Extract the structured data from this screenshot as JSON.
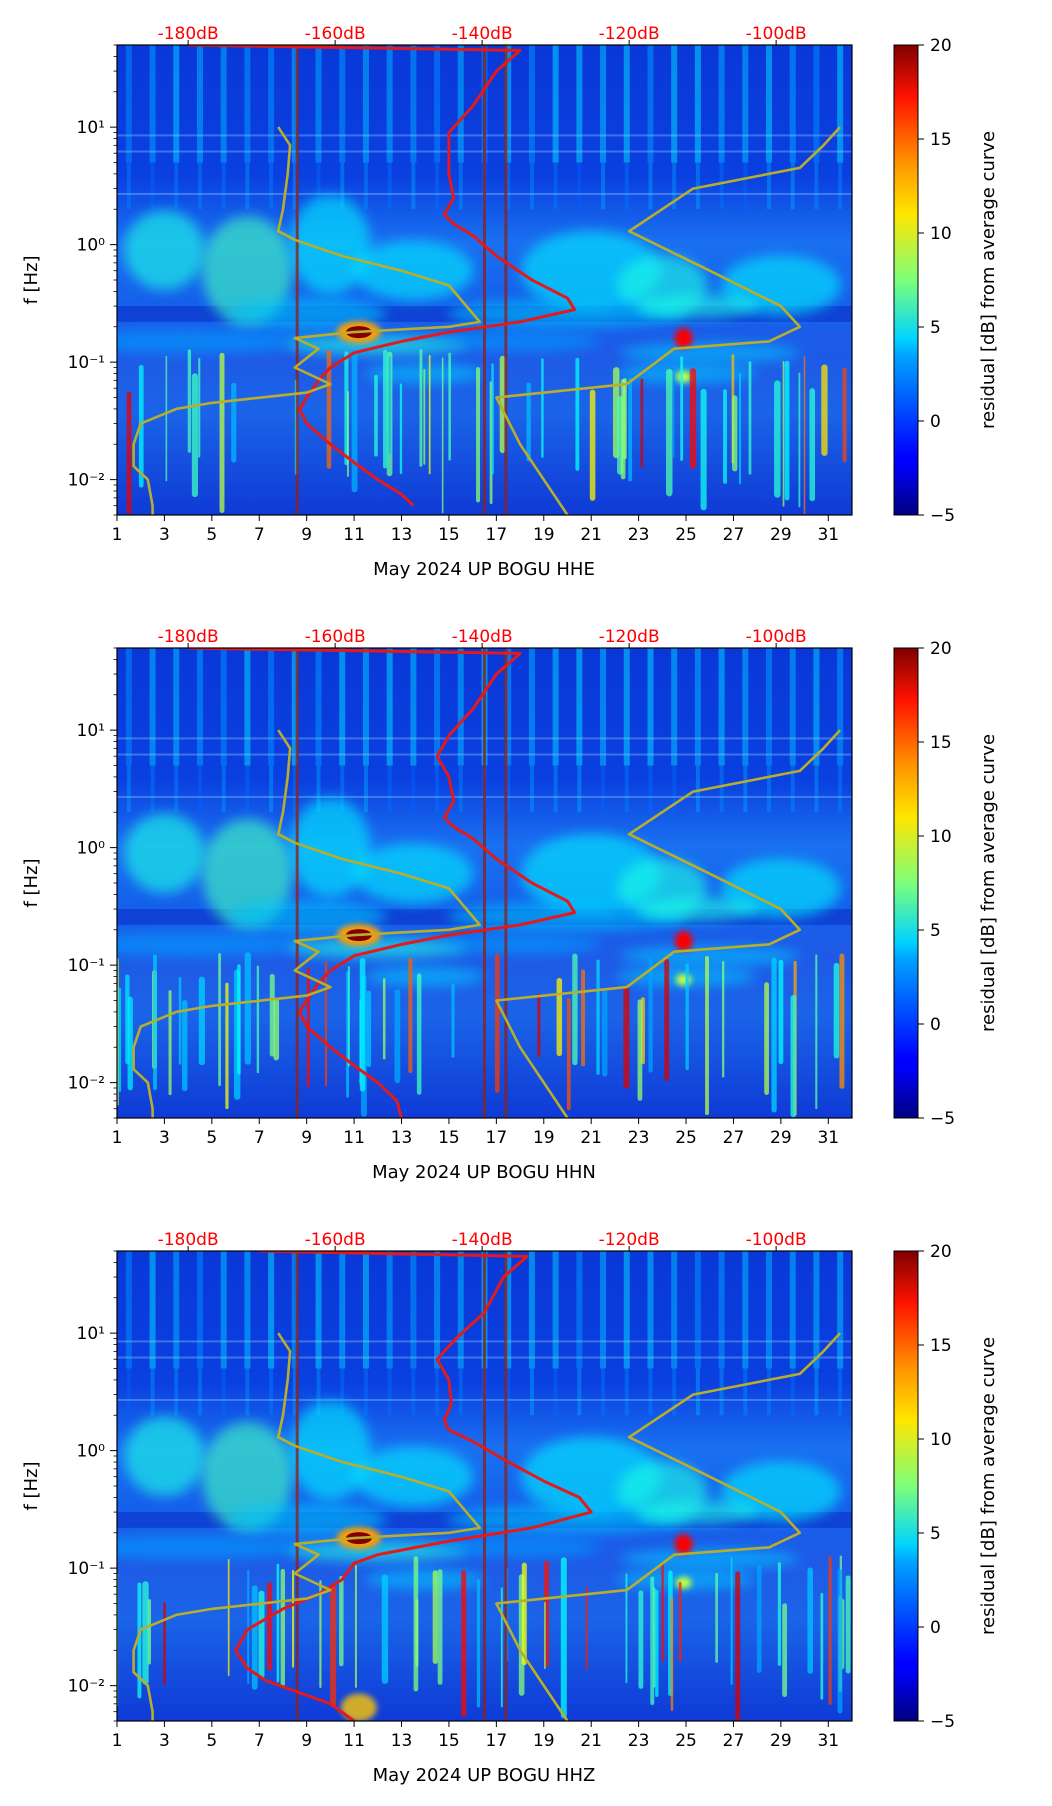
{
  "figure": {
    "panels": [
      {
        "xlabel": "May 2024 UP BOGU  HHE"
      },
      {
        "xlabel": "May 2024 UP BOGU  HHN"
      },
      {
        "xlabel": "May 2024 UP BOGU  HHZ"
      }
    ]
  },
  "chart_data": [
    {
      "type": "heatmap",
      "title": "",
      "xlabel": "May 2024 UP BOGU  HHE",
      "ylabel": "f [Hz]",
      "y_scale": "log",
      "xlim": [
        1,
        32
      ],
      "ylim": [
        0.005,
        50
      ],
      "x_ticks": [
        "1",
        "3",
        "5",
        "7",
        "9",
        "11",
        "13",
        "15",
        "17",
        "19",
        "21",
        "23",
        "25",
        "27",
        "29",
        "31"
      ],
      "y_ticks": [
        {
          "value": 0.01,
          "label": "10⁻²"
        },
        {
          "value": 0.1,
          "label": "10⁻¹"
        },
        {
          "value": 1,
          "label": "10⁰"
        },
        {
          "value": 10,
          "label": "10¹"
        }
      ],
      "top_ticks": [
        {
          "x": 4.0,
          "label": "-180dB"
        },
        {
          "x": 10.2,
          "label": "-160dB"
        },
        {
          "x": 16.4,
          "label": "-140dB"
        },
        {
          "x": 22.6,
          "label": "-120dB"
        },
        {
          "x": 28.8,
          "label": "-100dB"
        }
      ],
      "top_tick_color": "#ff0000",
      "colorbar": {
        "label": "residual [dB] from average curve",
        "range": [
          -5,
          20
        ],
        "ticks": [
          "20",
          "15",
          "10",
          "5",
          "0",
          "−5"
        ],
        "colormap": "jet"
      },
      "series": [
        {
          "color": "#e31a1c",
          "points": [
            [
              4.0,
              50
            ],
            [
              18,
              45
            ],
            [
              17,
              30
            ],
            [
              16,
              15
            ],
            [
              15,
              9
            ],
            [
              15,
              6
            ],
            [
              15,
              4
            ],
            [
              15.2,
              2.5
            ],
            [
              14.8,
              1.8
            ],
            [
              15.2,
              1.5
            ],
            [
              16,
              1.2
            ],
            [
              17,
              0.8
            ],
            [
              18.5,
              0.5
            ],
            [
              20,
              0.35
            ],
            [
              20.3,
              0.28
            ],
            [
              18,
              0.22
            ],
            [
              15,
              0.18
            ],
            [
              13,
              0.15
            ],
            [
              11,
              0.12
            ],
            [
              10,
              0.09
            ],
            [
              9.5,
              0.07
            ],
            [
              9,
              0.05
            ],
            [
              8.7,
              0.04
            ],
            [
              9,
              0.03
            ],
            [
              10,
              0.02
            ],
            [
              11,
              0.014
            ],
            [
              12,
              0.01
            ],
            [
              13,
              0.0075
            ],
            [
              13.5,
              0.006
            ]
          ]
        },
        {
          "color": "#b8ad2c",
          "points": [
            [
              7.8,
              10
            ],
            [
              8.3,
              7
            ],
            [
              8.2,
              4
            ],
            [
              8.0,
              2
            ],
            [
              7.8,
              1.3
            ],
            [
              8.5,
              1.1
            ],
            [
              10.5,
              0.8
            ],
            [
              13,
              0.6
            ],
            [
              15,
              0.45
            ],
            [
              16.3,
              0.22
            ],
            [
              15,
              0.2
            ],
            [
              11,
              0.18
            ],
            [
              8.5,
              0.16
            ],
            [
              9.5,
              0.13
            ],
            [
              8.5,
              0.09
            ],
            [
              10,
              0.065
            ],
            [
              9,
              0.055
            ],
            [
              5,
              0.045
            ],
            [
              3.5,
              0.04
            ],
            [
              2,
              0.03
            ],
            [
              1.7,
              0.02
            ],
            [
              1.7,
              0.013
            ],
            [
              2.3,
              0.01
            ],
            [
              2.5,
              0.006
            ],
            [
              2.5,
              0.005
            ]
          ]
        },
        {
          "color": "#b8ad2c",
          "points": [
            [
              20,
              0.005
            ],
            [
              18,
              0.02
            ],
            [
              17,
              0.05
            ],
            [
              22.5,
              0.065
            ],
            [
              24.5,
              0.13
            ],
            [
              28.5,
              0.15
            ],
            [
              29.8,
              0.2
            ],
            [
              29,
              0.3
            ],
            [
              26,
              0.6
            ],
            [
              22.6,
              1.3
            ],
            [
              25.3,
              3
            ],
            [
              29.8,
              4.5
            ],
            [
              30.8,
              7
            ],
            [
              31.5,
              10
            ]
          ]
        }
      ]
    },
    {
      "type": "heatmap",
      "title": "",
      "xlabel": "May 2024 UP BOGU  HHN",
      "ylabel": "f [Hz]",
      "y_scale": "log",
      "xlim": [
        1,
        32
      ],
      "ylim": [
        0.005,
        50
      ],
      "x_ticks": [
        "1",
        "3",
        "5",
        "7",
        "9",
        "11",
        "13",
        "15",
        "17",
        "19",
        "21",
        "23",
        "25",
        "27",
        "29",
        "31"
      ],
      "y_ticks": [
        {
          "value": 0.01,
          "label": "10⁻²"
        },
        {
          "value": 0.1,
          "label": "10⁻¹"
        },
        {
          "value": 1,
          "label": "10⁰"
        },
        {
          "value": 10,
          "label": "10¹"
        }
      ],
      "top_ticks": [
        {
          "x": 4.0,
          "label": "-180dB"
        },
        {
          "x": 10.2,
          "label": "-160dB"
        },
        {
          "x": 16.4,
          "label": "-140dB"
        },
        {
          "x": 22.6,
          "label": "-120dB"
        },
        {
          "x": 28.8,
          "label": "-100dB"
        }
      ],
      "top_tick_color": "#ff0000",
      "colorbar": {
        "label": "residual [dB] from average curve",
        "range": [
          -5,
          20
        ],
        "ticks": [
          "20",
          "15",
          "10",
          "5",
          "0",
          "−5"
        ],
        "colormap": "jet"
      },
      "series": [
        {
          "color": "#e31a1c",
          "points": [
            [
              4.0,
              50
            ],
            [
              18,
              45
            ],
            [
              17,
              30
            ],
            [
              16,
              15
            ],
            [
              15,
              9
            ],
            [
              14.5,
              6
            ],
            [
              15,
              4
            ],
            [
              15.2,
              2.5
            ],
            [
              14.8,
              1.8
            ],
            [
              15.2,
              1.5
            ],
            [
              16,
              1.2
            ],
            [
              17,
              0.8
            ],
            [
              18.5,
              0.5
            ],
            [
              20,
              0.35
            ],
            [
              20.3,
              0.28
            ],
            [
              18,
              0.22
            ],
            [
              15,
              0.18
            ],
            [
              13,
              0.15
            ],
            [
              11,
              0.12
            ],
            [
              10,
              0.09
            ],
            [
              9.5,
              0.07
            ],
            [
              9,
              0.05
            ],
            [
              8.7,
              0.04
            ],
            [
              9,
              0.03
            ],
            [
              10,
              0.02
            ],
            [
              11,
              0.014
            ],
            [
              12,
              0.01
            ],
            [
              12.8,
              0.007
            ],
            [
              13,
              0.005
            ]
          ]
        },
        {
          "color": "#b8ad2c",
          "points": [
            [
              7.8,
              10
            ],
            [
              8.3,
              7
            ],
            [
              8.2,
              4
            ],
            [
              8.0,
              2
            ],
            [
              7.8,
              1.3
            ],
            [
              8.5,
              1.1
            ],
            [
              10.5,
              0.8
            ],
            [
              13,
              0.6
            ],
            [
              15,
              0.45
            ],
            [
              16.3,
              0.22
            ],
            [
              15,
              0.2
            ],
            [
              11,
              0.18
            ],
            [
              8.5,
              0.16
            ],
            [
              9.5,
              0.13
            ],
            [
              8.5,
              0.09
            ],
            [
              10,
              0.065
            ],
            [
              9,
              0.055
            ],
            [
              5,
              0.045
            ],
            [
              3.5,
              0.04
            ],
            [
              2,
              0.03
            ],
            [
              1.7,
              0.02
            ],
            [
              1.7,
              0.013
            ],
            [
              2.3,
              0.01
            ],
            [
              2.5,
              0.006
            ],
            [
              2.5,
              0.005
            ]
          ]
        },
        {
          "color": "#b8ad2c",
          "points": [
            [
              20,
              0.005
            ],
            [
              18,
              0.02
            ],
            [
              17,
              0.05
            ],
            [
              22.5,
              0.065
            ],
            [
              24.5,
              0.13
            ],
            [
              28.5,
              0.15
            ],
            [
              29.8,
              0.2
            ],
            [
              29,
              0.3
            ],
            [
              26,
              0.6
            ],
            [
              22.6,
              1.3
            ],
            [
              25.3,
              3
            ],
            [
              29.8,
              4.5
            ],
            [
              30.8,
              7
            ],
            [
              31.5,
              10
            ]
          ]
        }
      ]
    },
    {
      "type": "heatmap",
      "title": "",
      "xlabel": "May 2024 UP BOGU  HHZ",
      "ylabel": "f [Hz]",
      "y_scale": "log",
      "xlim": [
        1,
        32
      ],
      "ylim": [
        0.005,
        50
      ],
      "x_ticks": [
        "1",
        "3",
        "5",
        "7",
        "9",
        "11",
        "13",
        "15",
        "17",
        "19",
        "21",
        "23",
        "25",
        "27",
        "29",
        "31"
      ],
      "y_ticks": [
        {
          "value": 0.01,
          "label": "10⁻²"
        },
        {
          "value": 0.1,
          "label": "10⁻¹"
        },
        {
          "value": 1,
          "label": "10⁰"
        },
        {
          "value": 10,
          "label": "10¹"
        }
      ],
      "top_ticks": [
        {
          "x": 4.0,
          "label": "-180dB"
        },
        {
          "x": 10.2,
          "label": "-160dB"
        },
        {
          "x": 16.4,
          "label": "-140dB"
        },
        {
          "x": 22.6,
          "label": "-120dB"
        },
        {
          "x": 28.8,
          "label": "-100dB"
        }
      ],
      "top_tick_color": "#ff0000",
      "colorbar": {
        "label": "residual [dB] from average curve",
        "range": [
          -5,
          20
        ],
        "ticks": [
          "20",
          "15",
          "10",
          "5",
          "0",
          "−5"
        ],
        "colormap": "jet"
      },
      "series": [
        {
          "color": "#e31a1c",
          "points": [
            [
              7.0,
              50
            ],
            [
              18.3,
              45
            ],
            [
              17.3,
              30
            ],
            [
              16.5,
              15
            ],
            [
              15.3,
              9
            ],
            [
              14.5,
              6
            ],
            [
              15,
              4
            ],
            [
              15.1,
              2.5
            ],
            [
              14.8,
              1.8
            ],
            [
              15,
              1.5
            ],
            [
              16,
              1.2
            ],
            [
              17.5,
              0.8
            ],
            [
              19,
              0.55
            ],
            [
              20.5,
              0.4
            ],
            [
              21,
              0.3
            ],
            [
              18.5,
              0.22
            ],
            [
              15,
              0.17
            ],
            [
              12,
              0.13
            ],
            [
              11,
              0.11
            ],
            [
              10.5,
              0.08
            ],
            [
              9.5,
              0.06
            ],
            [
              8,
              0.045
            ],
            [
              6.5,
              0.03
            ],
            [
              6.0,
              0.02
            ],
            [
              6.5,
              0.014
            ],
            [
              7.3,
              0.011
            ],
            [
              8.5,
              0.009
            ],
            [
              10,
              0.007
            ],
            [
              11,
              0.005
            ]
          ]
        },
        {
          "color": "#b8ad2c",
          "points": [
            [
              7.8,
              10
            ],
            [
              8.3,
              7
            ],
            [
              8.2,
              4
            ],
            [
              8.0,
              2
            ],
            [
              7.8,
              1.3
            ],
            [
              8.5,
              1.1
            ],
            [
              10.5,
              0.8
            ],
            [
              13,
              0.6
            ],
            [
              15,
              0.45
            ],
            [
              16.3,
              0.22
            ],
            [
              15,
              0.2
            ],
            [
              11,
              0.18
            ],
            [
              8.5,
              0.16
            ],
            [
              9.5,
              0.13
            ],
            [
              8.5,
              0.09
            ],
            [
              10,
              0.065
            ],
            [
              9,
              0.055
            ],
            [
              5,
              0.045
            ],
            [
              3.5,
              0.04
            ],
            [
              2,
              0.03
            ],
            [
              1.7,
              0.02
            ],
            [
              1.7,
              0.013
            ],
            [
              2.3,
              0.01
            ],
            [
              2.5,
              0.006
            ],
            [
              2.5,
              0.005
            ]
          ]
        },
        {
          "color": "#b8ad2c",
          "points": [
            [
              20,
              0.005
            ],
            [
              18,
              0.02
            ],
            [
              17,
              0.05
            ],
            [
              22.5,
              0.065
            ],
            [
              24.5,
              0.13
            ],
            [
              28.5,
              0.15
            ],
            [
              29.8,
              0.2
            ],
            [
              29,
              0.3
            ],
            [
              26,
              0.6
            ],
            [
              22.6,
              1.3
            ],
            [
              25.3,
              3
            ],
            [
              29.8,
              4.5
            ],
            [
              30.8,
              7
            ],
            [
              31.5,
              10
            ]
          ]
        }
      ]
    }
  ]
}
